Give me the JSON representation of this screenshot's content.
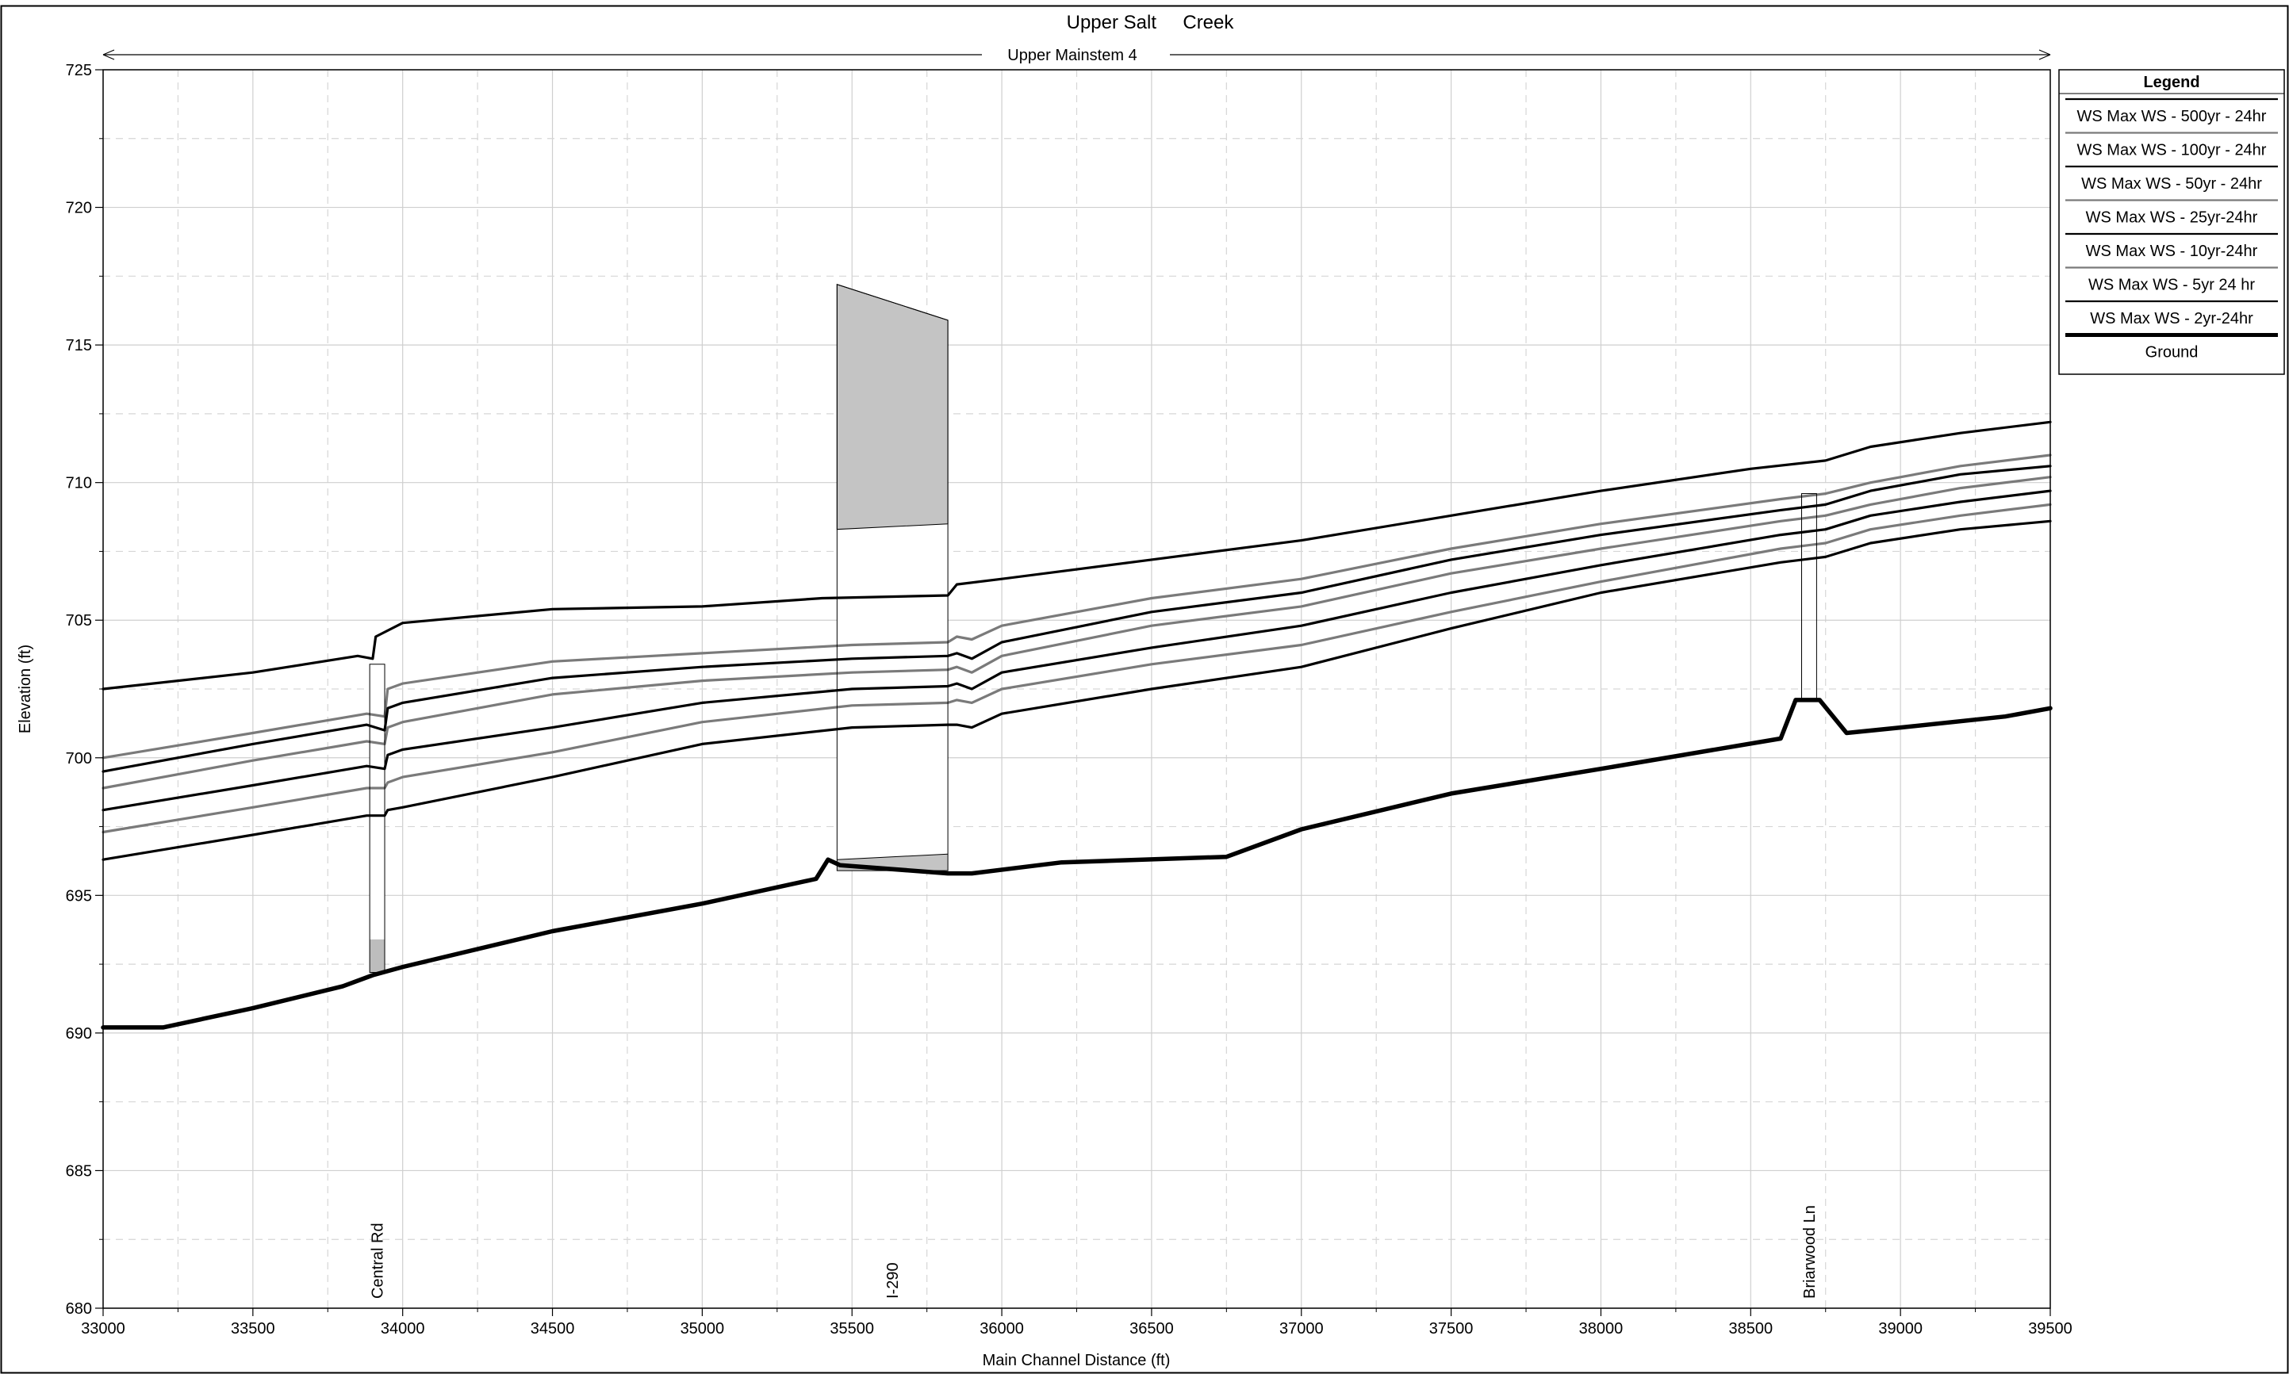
{
  "chart_data": {
    "type": "line",
    "title": "Upper Salt     Creek",
    "reach_label": "Upper Mainstem 4",
    "xlabel": "Main Channel Distance (ft)",
    "ylabel": "Elevation (ft)",
    "xlim": [
      33000,
      39500
    ],
    "ylim": [
      680,
      725
    ],
    "x_ticks": [
      33000,
      33500,
      34000,
      34500,
      35000,
      35500,
      36000,
      36500,
      37000,
      37500,
      38000,
      38500,
      39000,
      39500
    ],
    "y_ticks": [
      680,
      685,
      690,
      695,
      700,
      705,
      710,
      715,
      720,
      725
    ],
    "grid": true,
    "legend": {
      "title": "Legend",
      "placement": "right-top",
      "entries": [
        {
          "label": "WS  Max WS - 500yr - 24hr",
          "color": "#000000",
          "width": 2.2
        },
        {
          "label": "WS  Max WS - 100yr - 24hr",
          "color": "#7a7a7a",
          "width": 2.2
        },
        {
          "label": "WS  Max WS - 50yr - 24hr",
          "color": "#000000",
          "width": 2.2
        },
        {
          "label": "WS  Max WS - 25yr-24hr",
          "color": "#7a7a7a",
          "width": 2.2
        },
        {
          "label": "WS  Max WS - 10yr-24hr",
          "color": "#000000",
          "width": 2.2
        },
        {
          "label": "WS  Max WS - 5yr 24 hr",
          "color": "#7a7a7a",
          "width": 2.2
        },
        {
          "label": "WS  Max WS - 2yr-24hr",
          "color": "#000000",
          "width": 2.2
        },
        {
          "label": "Ground",
          "color": "#000000",
          "width": 5
        }
      ]
    },
    "series": [
      {
        "name": "WS  Max WS - 500yr - 24hr",
        "color": "#000000",
        "points": [
          [
            33000,
            702.5
          ],
          [
            33500,
            703.1
          ],
          [
            33850,
            703.7
          ],
          [
            33900,
            703.6
          ],
          [
            33910,
            704.4
          ],
          [
            34000,
            704.9
          ],
          [
            34500,
            705.4
          ],
          [
            35000,
            705.5
          ],
          [
            35400,
            705.8
          ],
          [
            35820,
            705.9
          ],
          [
            35850,
            706.3
          ],
          [
            36000,
            706.5
          ],
          [
            36500,
            707.2
          ],
          [
            37000,
            707.9
          ],
          [
            37500,
            708.8
          ],
          [
            38000,
            709.7
          ],
          [
            38500,
            710.5
          ],
          [
            38750,
            710.8
          ],
          [
            38900,
            711.3
          ],
          [
            39200,
            711.8
          ],
          [
            39500,
            712.2
          ]
        ]
      },
      {
        "name": "WS  Max WS - 100yr - 24hr",
        "color": "#7a7a7a",
        "points": [
          [
            33000,
            700.0
          ],
          [
            33500,
            700.9
          ],
          [
            33880,
            701.6
          ],
          [
            33940,
            701.5
          ],
          [
            33950,
            702.5
          ],
          [
            34000,
            702.7
          ],
          [
            34500,
            703.5
          ],
          [
            35000,
            703.8
          ],
          [
            35500,
            704.1
          ],
          [
            35820,
            704.2
          ],
          [
            35850,
            704.4
          ],
          [
            35900,
            704.3
          ],
          [
            36000,
            704.8
          ],
          [
            36500,
            705.8
          ],
          [
            37000,
            706.5
          ],
          [
            37500,
            707.6
          ],
          [
            38000,
            708.5
          ],
          [
            38600,
            709.4
          ],
          [
            38750,
            709.6
          ],
          [
            38900,
            710.0
          ],
          [
            39200,
            710.6
          ],
          [
            39500,
            711.0
          ]
        ]
      },
      {
        "name": "WS  Max WS - 50yr - 24hr",
        "color": "#000000",
        "points": [
          [
            33000,
            699.5
          ],
          [
            33500,
            700.5
          ],
          [
            33880,
            701.2
          ],
          [
            33940,
            701.0
          ],
          [
            33950,
            701.8
          ],
          [
            34000,
            702.0
          ],
          [
            34500,
            702.9
          ],
          [
            35000,
            703.3
          ],
          [
            35500,
            703.6
          ],
          [
            35820,
            703.7
          ],
          [
            35850,
            703.8
          ],
          [
            35900,
            703.6
          ],
          [
            36000,
            704.2
          ],
          [
            36500,
            705.3
          ],
          [
            37000,
            706.0
          ],
          [
            37500,
            707.2
          ],
          [
            38000,
            708.1
          ],
          [
            38600,
            709.0
          ],
          [
            38750,
            709.2
          ],
          [
            38900,
            709.7
          ],
          [
            39200,
            710.3
          ],
          [
            39500,
            710.6
          ]
        ]
      },
      {
        "name": "WS  Max WS - 25yr-24hr",
        "color": "#7a7a7a",
        "points": [
          [
            33000,
            698.9
          ],
          [
            33500,
            699.9
          ],
          [
            33880,
            700.6
          ],
          [
            33940,
            700.5
          ],
          [
            33950,
            701.1
          ],
          [
            34000,
            701.3
          ],
          [
            34500,
            702.3
          ],
          [
            35000,
            702.8
          ],
          [
            35500,
            703.1
          ],
          [
            35820,
            703.2
          ],
          [
            35850,
            703.3
          ],
          [
            35900,
            703.1
          ],
          [
            36000,
            703.7
          ],
          [
            36500,
            704.8
          ],
          [
            37000,
            705.5
          ],
          [
            37500,
            706.7
          ],
          [
            38000,
            707.6
          ],
          [
            38600,
            708.6
          ],
          [
            38750,
            708.8
          ],
          [
            38900,
            709.2
          ],
          [
            39200,
            709.8
          ],
          [
            39500,
            710.2
          ]
        ]
      },
      {
        "name": "WS  Max WS - 10yr-24hr",
        "color": "#000000",
        "points": [
          [
            33000,
            698.1
          ],
          [
            33500,
            699.0
          ],
          [
            33880,
            699.7
          ],
          [
            33940,
            699.6
          ],
          [
            33950,
            700.1
          ],
          [
            34000,
            700.3
          ],
          [
            34500,
            701.1
          ],
          [
            35000,
            702.0
          ],
          [
            35500,
            702.5
          ],
          [
            35820,
            702.6
          ],
          [
            35850,
            702.7
          ],
          [
            35900,
            702.5
          ],
          [
            36000,
            703.1
          ],
          [
            36500,
            704.0
          ],
          [
            37000,
            704.8
          ],
          [
            37500,
            706.0
          ],
          [
            38000,
            707.0
          ],
          [
            38600,
            708.1
          ],
          [
            38750,
            708.3
          ],
          [
            38900,
            708.8
          ],
          [
            39200,
            709.3
          ],
          [
            39500,
            709.7
          ]
        ]
      },
      {
        "name": "WS  Max WS - 5yr 24 hr",
        "color": "#7a7a7a",
        "points": [
          [
            33000,
            697.3
          ],
          [
            33500,
            698.2
          ],
          [
            33880,
            698.9
          ],
          [
            33940,
            698.9
          ],
          [
            33950,
            699.1
          ],
          [
            34000,
            699.3
          ],
          [
            34500,
            700.2
          ],
          [
            35000,
            701.3
          ],
          [
            35500,
            701.9
          ],
          [
            35820,
            702.0
          ],
          [
            35850,
            702.1
          ],
          [
            35900,
            702.0
          ],
          [
            36000,
            702.5
          ],
          [
            36500,
            703.4
          ],
          [
            37000,
            704.1
          ],
          [
            37500,
            705.3
          ],
          [
            38000,
            706.4
          ],
          [
            38600,
            707.6
          ],
          [
            38750,
            707.8
          ],
          [
            38900,
            708.3
          ],
          [
            39200,
            708.8
          ],
          [
            39500,
            709.2
          ]
        ]
      },
      {
        "name": "WS  Max WS - 2yr-24hr",
        "color": "#000000",
        "points": [
          [
            33000,
            696.3
          ],
          [
            33500,
            697.2
          ],
          [
            33880,
            697.9
          ],
          [
            33940,
            697.9
          ],
          [
            33950,
            698.1
          ],
          [
            34000,
            698.2
          ],
          [
            34500,
            699.3
          ],
          [
            35000,
            700.5
          ],
          [
            35500,
            701.1
          ],
          [
            35820,
            701.2
          ],
          [
            35850,
            701.2
          ],
          [
            35900,
            701.1
          ],
          [
            36000,
            701.6
          ],
          [
            36500,
            702.5
          ],
          [
            37000,
            703.3
          ],
          [
            37500,
            704.7
          ],
          [
            38000,
            706.0
          ],
          [
            38600,
            707.1
          ],
          [
            38750,
            707.3
          ],
          [
            38900,
            707.8
          ],
          [
            39200,
            708.3
          ],
          [
            39500,
            708.6
          ]
        ]
      },
      {
        "name": "Ground",
        "color": "#000000",
        "points": [
          [
            33000,
            690.2
          ],
          [
            33200,
            690.2
          ],
          [
            33500,
            690.9
          ],
          [
            33800,
            691.7
          ],
          [
            33900,
            692.1
          ],
          [
            34000,
            692.4
          ],
          [
            34500,
            693.7
          ],
          [
            35000,
            694.7
          ],
          [
            35380,
            695.6
          ],
          [
            35420,
            696.3
          ],
          [
            35460,
            696.1
          ],
          [
            35820,
            695.8
          ],
          [
            35900,
            695.8
          ],
          [
            36200,
            696.2
          ],
          [
            36750,
            696.4
          ],
          [
            37000,
            697.4
          ],
          [
            37500,
            698.7
          ],
          [
            38000,
            699.6
          ],
          [
            38600,
            700.7
          ],
          [
            38650,
            702.1
          ],
          [
            38730,
            702.1
          ],
          [
            38820,
            700.9
          ],
          [
            39000,
            701.1
          ],
          [
            39350,
            701.5
          ],
          [
            39500,
            701.8
          ]
        ]
      }
    ],
    "structures": [
      {
        "name": "Central Rd",
        "x_start": 33890,
        "x_end": 33940,
        "top": 703.4,
        "low_chord": 693.4,
        "ground": 692.2
      },
      {
        "name": "I-290",
        "x_start": 35450,
        "x_end": 35820,
        "top_start": 717.2,
        "top_end": 715.9,
        "low_chord_start": 708.3,
        "low_chord_end": 708.5,
        "invert_start": 696.3,
        "invert_end": 696.5,
        "ground": 695.9
      },
      {
        "name": "Briarwood Ln",
        "x_start": 38670,
        "x_end": 38720,
        "top": 709.6,
        "low_chord": 709.6,
        "ground": 702.1
      }
    ]
  }
}
